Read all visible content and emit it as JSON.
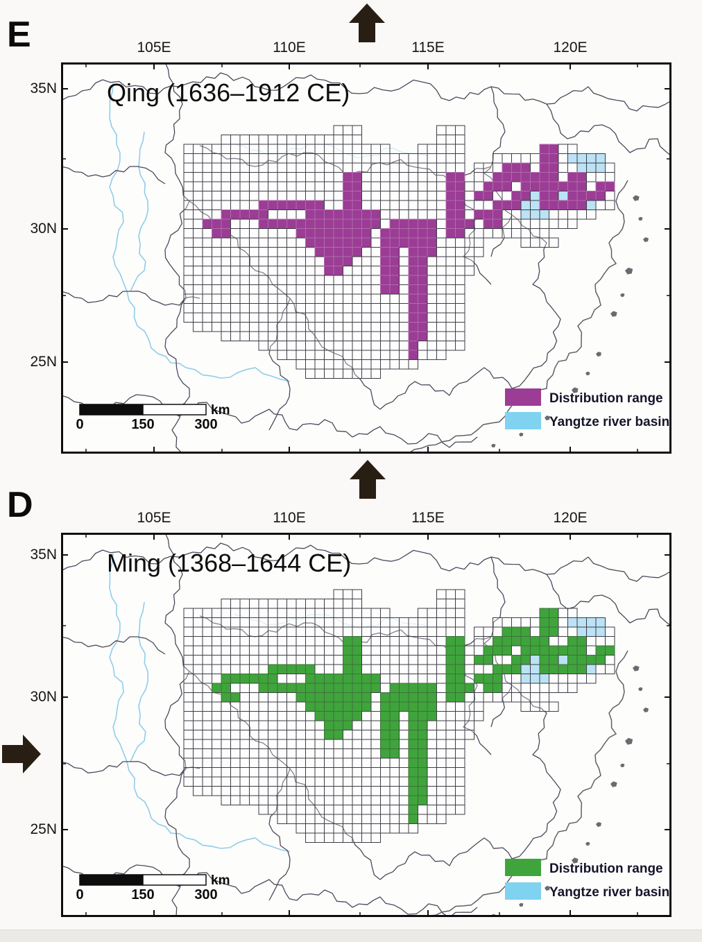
{
  "figure": {
    "grid_encoding": {
      ".": "no survey cell",
      "o": "surveyed cell (unoccupied)",
      "x": "distribution range cell",
      "b": "Yangtze basin water cell"
    },
    "map_colors": {
      "river": "#8fcde9",
      "border": "#4d4758",
      "coast": "#5f5f66",
      "island": "#6a6a71",
      "basin_cell": "#aadcf2",
      "grid_stroke": "#3c3c44",
      "frame": "#0d0d0d",
      "map_bg": "#fdfdfc",
      "page_bg": "#faf9f7",
      "arrow": "#281e14"
    },
    "panels": [
      {
        "id": "E",
        "label": "E",
        "title": "Qing (1636–1912 CE)",
        "fill_color": "#9b3c95",
        "fill_stroke": "#b16bac",
        "lon_labels": [
          "105E",
          "110E",
          "115E",
          "120E"
        ],
        "lat_labels": [
          "35N",
          "30N",
          "25N"
        ],
        "legend": [
          {
            "label": "Distribution range",
            "color": "#9b3c95"
          },
          {
            "label": "Yangtze river basin",
            "color": "#7fd2f0"
          }
        ],
        "scalebar": {
          "tick_labels": [
            "0",
            "150",
            "300"
          ],
          "unit": "km"
        },
        "grid_rows": [
          "................ooo........ooo................",
          "....ooooooooooooooo........ooo................",
          "oooooooooooooooooooooo...ooooo........xxoo....",
          "oooooooooooooooooooooooooooooo...oooooxxobbbb.",
          "oooooooooooooooooooooooooooooo.oooxxxoxxoobbbo",
          "oooooooooooooooooxxoooooooooxx.ooxxxxxxxoxxooo",
          "oooooooooooooooooxxoooooooooxxooxxxoxxxxxxxoxx",
          "oooooooooooooooooxxoooooooooxxoxxooxxbxxbxxxxo",
          "ooooooooxxxxxxxooxxoooooooooxxoooxxxbbxxxxxboo",
          "ooooxxxxxooooxxxxxxxxoooooooxxoxxxoobbbooooo..",
          "ooxxxoooxxxxxxxxxxxxxoxxxxxoxxxoxxoooooooo....",
          "oooxxoooooooxxxxxxxxoxxxxxxoxxooooooooo.......",
          "oooooooooooooxxxxxxxoxxxxxxooooo....oooo......",
          "ooooooooooooooxxxxxooxxoxxxooooo..............",
          "oooooooooooooooxxxoooxxoxxooooo...............",
          "oooooooooooooooxxooooxxoxxooooo...............",
          "oooooooooooooooooooooxxoxxoooo................",
          "oooooooooooooooooooooxxoxxoooo................",
          "ooooooooooooooooooooooooxxoooo................",
          "ooooooooooooooooooooooooxxoooo................",
          "ooooooooooooooooooooooooxxoooo................",
          ".oooooooooooooooooooooooxxoooo................",
          "....ooooooooooooooooooooxxoooo................",
          "........ooooooooooooooooxooooo................",
          "..........ooooooooooooooxooo..................",
          "............ooooooooooooo.....................",
          ".............oooooooo........................."
        ]
      },
      {
        "id": "D",
        "label": "D",
        "title": "Ming (1368–1644 CE)",
        "fill_color": "#3fa43b",
        "fill_stroke": "#3f6f3c",
        "lon_labels": [
          "105E",
          "110E",
          "115E",
          "120E"
        ],
        "lat_labels": [
          "35N",
          "30N",
          "25N"
        ],
        "legend": [
          {
            "label": "Distribution range",
            "color": "#3fa43b"
          },
          {
            "label": "Yangtze river basin",
            "color": "#7fd2f0"
          }
        ],
        "scalebar": {
          "tick_labels": [
            "0",
            "150",
            "300"
          ],
          "unit": "km"
        },
        "grid_rows": [
          "................ooo........ooo................",
          "....ooooooooooooooo........ooo................",
          "oooooooooooooooooooooo...ooooo........xxoo....",
          "oooooooooooooooooooooooooooooo...oooooxxobbbb.",
          "oooooooooooooooooooooooooooooo.oooxxxoxxoobbbo",
          "oooooooooooooooooxxoooooooooxx.ooxxxxxxooxxooo",
          "oooooooooooooooooxxoooooooooxxooxxxoxxxxxxxoxx",
          "oooooooooooooooooxxoooooooooxxoxxooxxbxxbxxxxo",
          "oooooooooxxxxxoooxxoooooooooxxoooxxxbbxxxxxboo",
          "ooooxxxxxxoooxxxxxxxxoooooooxxoxxxoobbbooooo..",
          "oooxxoooxxxxxxxxxxxxxoxxxxxoxxxoxxoooooooo....",
          "ooooxxooooooxxxxxxxxoxxxxxxoxxooooooooo.......",
          "oooooooooooooxxxxxxxoxxxxxxooooo....oooo......",
          "ooooooooooooooxxxxxooxxoxxxooooo..............",
          "oooooooooooooooxxxoooxxoxxooooo...............",
          "oooooooooooooooxxooooxxoxxooooo...............",
          "oooooooooooooooooooooxxoxxoooo................",
          "oooooooooooooooooooooxxoxxoooo................",
          "ooooooooooooooooooooooooxxoooo................",
          "ooooooooooooooooooooooooxxoooo................",
          "ooooooooooooooooooooooooxxoooo................",
          ".oooooooooooooooooooooooxxoooo................",
          "....ooooooooooooooooooooxxoooo................",
          "........ooooooooooooooooxooooo................",
          "..........ooooooooooooooxooo..................",
          "............ooooooooooooo.....................",
          ".............oooooooo........................."
        ]
      }
    ],
    "arrows": [
      {
        "name": "north-arrow",
        "direction": "up"
      },
      {
        "name": "sequence-arrow-between-panels",
        "direction": "up"
      },
      {
        "name": "sequence-arrow-left",
        "direction": "right"
      }
    ]
  }
}
